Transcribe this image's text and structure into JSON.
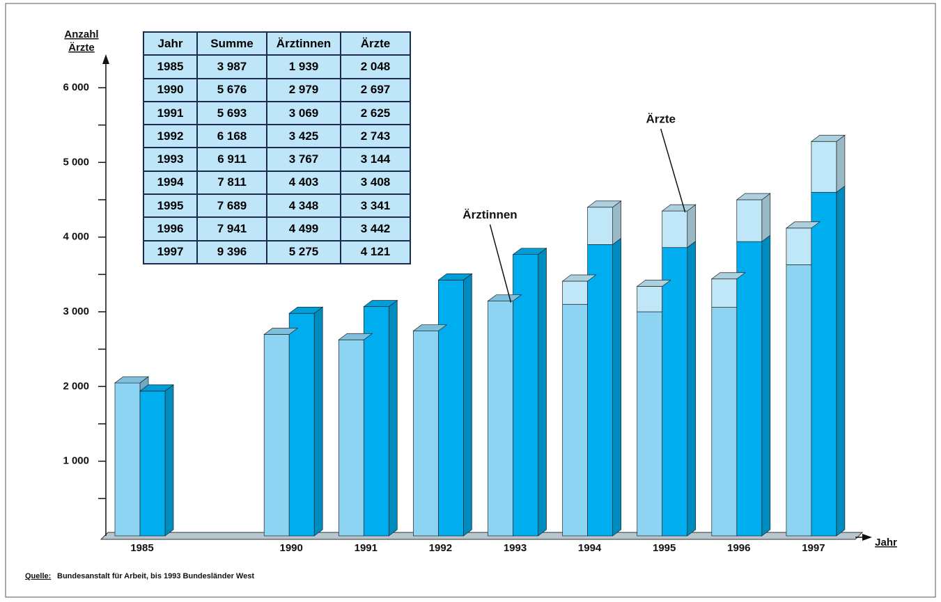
{
  "chart_data": {
    "type": "bar3d-stacked",
    "ylabel": [
      "Anzahl",
      "Ärzte"
    ],
    "xlabel": "Jahr",
    "categories": [
      "1985",
      null,
      "1990",
      "1991",
      "1992",
      "1993",
      "1994",
      "1995",
      "1996",
      "1997"
    ],
    "series": [
      {
        "stack": 0,
        "color": "#8dd4f3",
        "values": [
          2048,
          null,
          2697,
          2625,
          2743,
          3144,
          3100,
          3000,
          3060,
          3630
        ]
      },
      {
        "stack": 0,
        "color": "#c0e7f8",
        "values": [
          null,
          null,
          null,
          null,
          null,
          null,
          310,
          340,
          380,
          490
        ]
      },
      {
        "stack": 1,
        "color": "#00aeef",
        "values": [
          1939,
          null,
          2979,
          3069,
          3425,
          3767,
          3900,
          3860,
          3940,
          4600
        ]
      },
      {
        "stack": 1,
        "color": "#c0e7f8",
        "values": [
          null,
          null,
          null,
          null,
          null,
          null,
          500,
          490,
          560,
          680
        ]
      }
    ],
    "annotations": [
      {
        "text": "Ärztinnen",
        "series": 0,
        "index": 5
      },
      {
        "text": "Ärzte",
        "series": 3,
        "index": 7
      }
    ],
    "ylim": [
      0,
      6400
    ],
    "yticks": [
      {
        "value": 1000,
        "label": "1 000"
      },
      {
        "value": 2000,
        "label": "2 000"
      },
      {
        "value": 3000,
        "label": "3 000"
      },
      {
        "value": 4000,
        "label": "4 000"
      },
      {
        "value": 5000,
        "label": "5 000"
      },
      {
        "value": 6000,
        "label": "6 000"
      }
    ],
    "yminorticks": [
      500,
      1500,
      2500,
      3500,
      4500,
      5500
    ]
  },
  "table": {
    "header": [
      "Jahr",
      "Summe",
      "Ärztinnen",
      "Ärzte"
    ],
    "rows": [
      [
        "1985",
        "3 987",
        "1 939",
        "2 048"
      ],
      [
        "1990",
        "5 676",
        "2 979",
        "2 697"
      ],
      [
        "1991",
        "5 693",
        "3 069",
        "2 625"
      ],
      [
        "1992",
        "6 168",
        "3 425",
        "2 743"
      ],
      [
        "1993",
        "6 911",
        "3 767",
        "3 144"
      ],
      [
        "1994",
        "7 811",
        "4 403",
        "3 408"
      ],
      [
        "1995",
        "7 689",
        "4 348",
        "3 341"
      ],
      [
        "1996",
        "7 941",
        "4 499",
        "3 442"
      ],
      [
        "1997",
        "9 396",
        "5 275",
        "4 121"
      ]
    ]
  },
  "source": {
    "label": "Quelle:",
    "text": "Bundesanstalt für Arbeit, bis 1993 Bundesländer West"
  }
}
